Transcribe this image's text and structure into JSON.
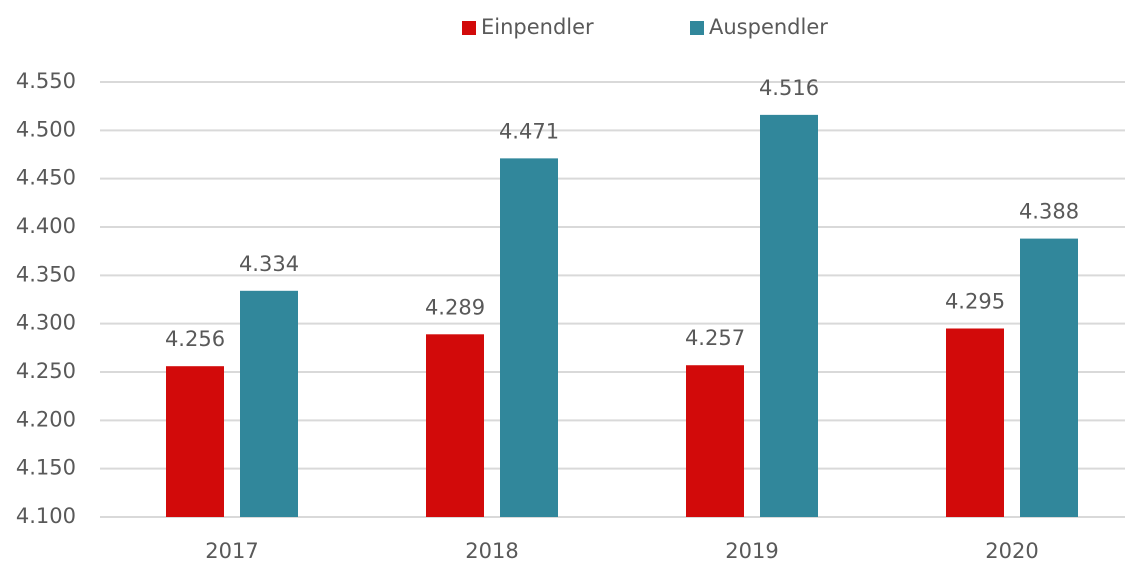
{
  "chart_data": {
    "type": "bar",
    "categories": [
      "2017",
      "2018",
      "2019",
      "2020"
    ],
    "series": [
      {
        "name": "Einpendler",
        "color": "#d20a0a",
        "values": [
          4256,
          4289,
          4257,
          4295
        ],
        "value_labels": [
          "4.256",
          "4.289",
          "4.257",
          "4.295"
        ]
      },
      {
        "name": "Auspendler",
        "color": "#31879b",
        "values": [
          4334,
          4471,
          4516,
          4388
        ],
        "value_labels": [
          "4.334",
          "4.471",
          "4.516",
          "4.388"
        ]
      }
    ],
    "ylim": [
      4100,
      4550
    ],
    "yticks": [
      {
        "value": 4100,
        "label": "4.100"
      },
      {
        "value": 4150,
        "label": "4.150"
      },
      {
        "value": 4200,
        "label": "4.200"
      },
      {
        "value": 4250,
        "label": "4.250"
      },
      {
        "value": 4300,
        "label": "4.300"
      },
      {
        "value": 4350,
        "label": "4.350"
      },
      {
        "value": 4400,
        "label": "4.400"
      },
      {
        "value": 4450,
        "label": "4.450"
      },
      {
        "value": 4500,
        "label": "4.500"
      },
      {
        "value": 4550,
        "label": "4.550"
      }
    ],
    "grid": true,
    "legend": "top"
  }
}
